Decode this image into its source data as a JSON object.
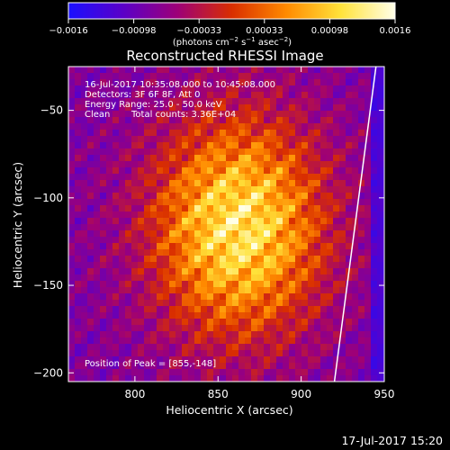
{
  "chart_data": {
    "type": "heatmap",
    "title": "Reconstructed RHESSI Image",
    "xlabel": "Heliocentric X (arcsec)",
    "ylabel": "Heliocentric Y (arcsec)",
    "xlim": [
      760,
      950
    ],
    "ylim": [
      -205,
      -25
    ],
    "x_ticks": [
      "800",
      "850",
      "900",
      "950"
    ],
    "y_ticks": [
      "−50",
      "−100",
      "−150",
      "−200"
    ],
    "colorbar": {
      "min": -0.0016,
      "max": 0.0016,
      "tick_labels": [
        "−0.0016",
        "−0.00098",
        "−0.00033",
        "0.00033",
        "0.00098",
        "0.0016"
      ],
      "unit_parts": [
        "(photons cm",
        "−2",
        " s",
        "−1",
        " asec",
        "−2",
        ")"
      ],
      "colors": [
        "#1a10ff",
        "#5a00c8",
        "#9d0078",
        "#d92e00",
        "#ff8a00",
        "#ffe23a",
        "#ffffe8"
      ]
    },
    "peak_position": [
      855,
      -148
    ],
    "annotations": {
      "time_range": "16-Jul-2017 10:35:08.000 to 10:45:08.000",
      "detectors": "Detectors: 3F 6F 8F, Att 0",
      "energy": "Energy Range: 25.0 - 50.0 keV",
      "clean_label": "Clean",
      "total_counts": "Total counts: 3.36E+04",
      "peak": "Position of Peak = [855,-148]"
    },
    "limb_line": {
      "x1": 945,
      "y1": -25,
      "x2": 920,
      "y2": -205
    }
  },
  "footer": {
    "timestamp": "17-Jul-2017 15:20"
  }
}
